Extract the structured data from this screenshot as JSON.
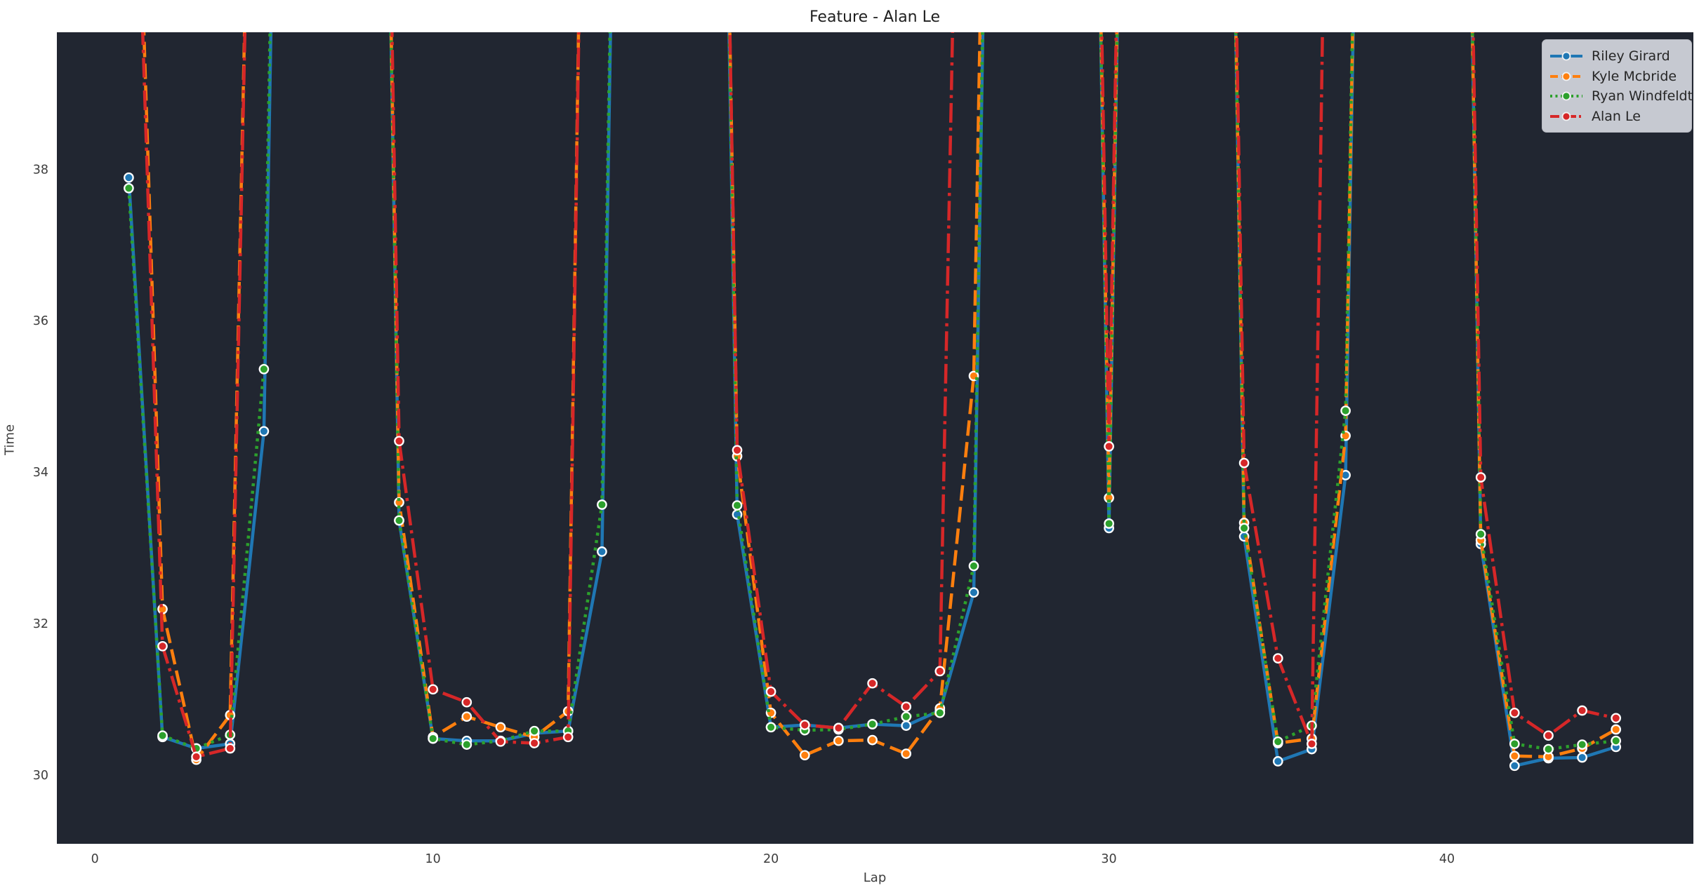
{
  "title": "Feature - Alan Le",
  "axes": {
    "xlabel": "Lap",
    "ylabel": "Time",
    "x_ticks": [
      0,
      10,
      20,
      30,
      40
    ],
    "y_ticks": [
      30,
      32,
      34,
      36,
      38
    ]
  },
  "colors": {
    "figure_bg": "#ffffff",
    "plot_bg": "#212631",
    "tick_label": "#3d3d3d",
    "title_color": "#1f1f1f",
    "legend_bg": "#d0d2da",
    "legend_text": "#262626"
  },
  "chart_data": {
    "type": "line",
    "title": "Feature - Alan Le",
    "xlabel": "Lap",
    "ylabel": "Time",
    "xlim": [
      -1.126,
      47.29
    ],
    "ylim": [
      29.09,
      39.81
    ],
    "grid": false,
    "legend_position": "upper right",
    "lap_range": [
      1,
      45
    ],
    "note": "Values above ~39.8 are off-scale spike laps (cautions/pits) drawn exiting the top of the plot",
    "series": [
      {
        "name": "Riley Girard",
        "color": "#1f77b4",
        "linestyle": "solid",
        "dash": "",
        "legend_dash": "",
        "values": [
          37.89,
          30.5,
          30.35,
          30.41,
          34.54,
          60,
          60,
          60,
          33.36,
          30.48,
          30.45,
          30.45,
          30.55,
          30.58,
          32.95,
          60,
          60,
          60,
          33.44,
          30.63,
          30.66,
          30.62,
          30.67,
          30.65,
          30.85,
          32.41,
          60,
          60,
          60,
          33.26,
          60,
          60,
          60,
          33.15,
          30.18,
          30.34,
          33.96,
          60,
          60,
          60,
          33.05,
          30.12,
          30.22,
          30.23,
          30.37
        ]
      },
      {
        "name": "Kyle Mcbride",
        "color": "#ff7f0e",
        "linestyle": "dashed",
        "dash": "22 9",
        "legend_dash": "11 5",
        "values": [
          46,
          32.19,
          30.2,
          30.79,
          52,
          60,
          60,
          60,
          33.6,
          30.5,
          30.77,
          30.63,
          30.5,
          30.84,
          60,
          60,
          60,
          60,
          34.21,
          30.82,
          30.26,
          30.45,
          30.46,
          30.28,
          30.88,
          35.27,
          60,
          60,
          60,
          33.66,
          60,
          60,
          60,
          33.33,
          30.42,
          30.48,
          34.48,
          60,
          60,
          60,
          33.1,
          30.25,
          30.24,
          30.35,
          30.6
        ]
      },
      {
        "name": "Ryan Windfeldt",
        "color": "#2ca02c",
        "linestyle": "dotted",
        "dash": "4.2 6.5",
        "legend_dash": "3 4.5",
        "values": [
          37.75,
          30.52,
          30.35,
          30.53,
          35.36,
          60,
          60,
          60,
          33.36,
          30.48,
          30.4,
          30.45,
          30.58,
          30.58,
          33.57,
          60,
          60,
          60,
          33.56,
          30.63,
          30.59,
          30.6,
          30.67,
          30.77,
          30.82,
          32.76,
          60,
          60,
          60,
          33.32,
          60,
          60,
          60,
          33.26,
          30.44,
          30.65,
          34.81,
          60,
          60,
          60,
          33.18,
          30.41,
          30.34,
          30.4,
          30.45
        ]
      },
      {
        "name": "Alan Le",
        "color": "#d62728",
        "linestyle": "dashdot",
        "dash": "28 7 4.5 7",
        "legend_dash": "13 4 3 4",
        "values": [
          45.5,
          31.7,
          30.24,
          30.35,
          52,
          60,
          60,
          60,
          34.41,
          31.13,
          30.96,
          30.44,
          30.42,
          30.5,
          60,
          60,
          60,
          60,
          34.29,
          31.1,
          30.66,
          30.62,
          31.21,
          30.9,
          31.37,
          54,
          60,
          60,
          60,
          34.34,
          60,
          60,
          60,
          34.12,
          31.54,
          30.41,
          60,
          60,
          60,
          60,
          33.93,
          30.82,
          30.52,
          30.85,
          30.75
        ]
      }
    ]
  }
}
